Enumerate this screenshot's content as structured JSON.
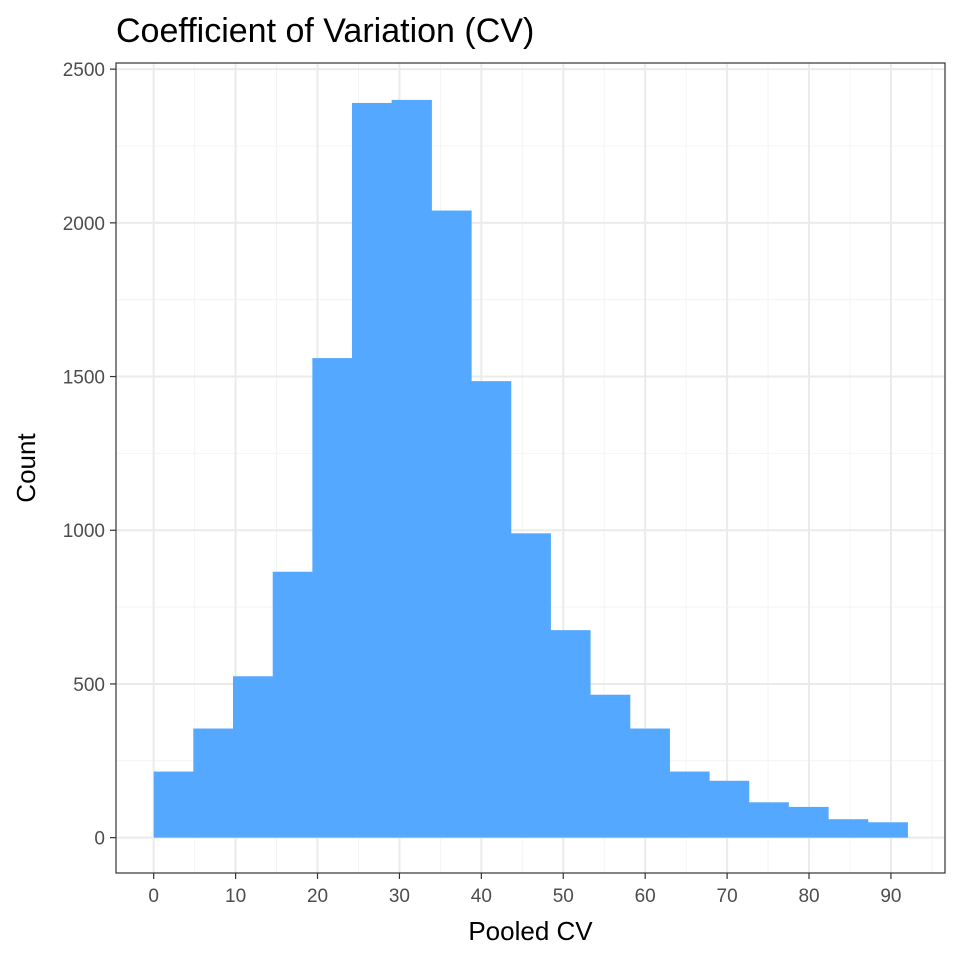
{
  "chart_data": {
    "type": "bar",
    "title": "Coefficient of Variation (CV)",
    "xlabel": "Pooled CV",
    "ylabel": "Count",
    "xlim": [
      -4.6,
      96.6
    ],
    "ylim": [
      -115,
      2520
    ],
    "x_ticks": [
      0,
      10,
      20,
      30,
      40,
      50,
      60,
      70,
      80,
      90
    ],
    "y_ticks": [
      0,
      500,
      1000,
      1500,
      2000,
      2500
    ],
    "grid": true,
    "bin_edges": [
      0,
      4.84,
      9.68,
      14.53,
      19.37,
      24.21,
      29.05,
      33.89,
      38.74,
      43.58,
      48.42,
      53.26,
      58.11,
      62.95,
      67.79,
      72.63,
      77.47,
      82.32,
      87.16,
      92.0
    ],
    "counts": [
      215,
      355,
      525,
      865,
      1560,
      2390,
      2400,
      2040,
      1485,
      990,
      675,
      465,
      355,
      215,
      185,
      115,
      100,
      60,
      50
    ],
    "colors": {
      "bar": "#55A8FF",
      "panel_border": "#333333",
      "grid_major": "#EBEBEB",
      "grid_minor": "#F4F4F4",
      "tick_label": "#4D4D4D"
    }
  }
}
